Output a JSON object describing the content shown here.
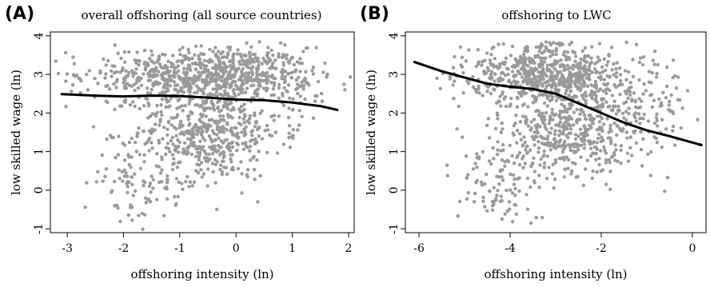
{
  "panels": [
    {
      "letter": "(A)",
      "title": "overall offshoring (all source countries)"
    },
    {
      "letter": "(B)",
      "title": "offshoring to LWC"
    }
  ],
  "chart_data": [
    {
      "type": "scatter",
      "panel": "(A)",
      "title": "overall offshoring (all source countries)",
      "xlabel": "offshoring intensity (ln)",
      "ylabel": "low skilled wage (ln)",
      "xlim": [
        -3.3,
        2.1
      ],
      "ylim": [
        -1.1,
        4.1
      ],
      "xticks": [
        -3,
        -2,
        -1,
        0,
        1,
        2
      ],
      "yticks": [
        -1,
        0,
        1,
        2,
        3,
        4
      ],
      "grid": false,
      "point_color": "#9a9a9a",
      "line_color": "#000000",
      "scatter_clusters": [
        {
          "cx": -0.3,
          "cy": 3.0,
          "sx": 0.8,
          "sy": 0.35,
          "n": 650
        },
        {
          "cx": -0.5,
          "cy": 1.5,
          "sx": 0.65,
          "sy": 0.6,
          "n": 500
        },
        {
          "cx": -1.8,
          "cy": 3.0,
          "sx": 0.6,
          "sy": 0.35,
          "n": 120
        },
        {
          "cx": -1.6,
          "cy": 0.2,
          "sx": 0.55,
          "sy": 0.55,
          "n": 110
        },
        {
          "cx": 1.0,
          "cy": 2.6,
          "sx": 0.35,
          "sy": 0.6,
          "n": 60
        }
      ],
      "fit_line": {
        "x": [
          -3.1,
          -2.5,
          -2.0,
          -1.5,
          -1.0,
          -0.5,
          0.0,
          0.5,
          1.0,
          1.5,
          1.8
        ],
        "y": [
          2.49,
          2.45,
          2.43,
          2.45,
          2.44,
          2.4,
          2.35,
          2.33,
          2.27,
          2.18,
          2.08
        ]
      }
    },
    {
      "type": "scatter",
      "panel": "(B)",
      "title": "offshoring to LWC",
      "xlabel": "offshoring intensity (ln)",
      "ylabel": "low skilled wage (ln)",
      "xlim": [
        -6.3,
        0.3
      ],
      "ylim": [
        -1.1,
        4.1
      ],
      "xticks": [
        -6,
        -4,
        -2,
        0
      ],
      "yticks": [
        -1,
        0,
        1,
        2,
        3,
        4
      ],
      "grid": false,
      "point_color": "#9a9a9a",
      "line_color": "#000000",
      "scatter_clusters": [
        {
          "cx": -3.2,
          "cy": 3.0,
          "sx": 0.9,
          "sy": 0.4,
          "n": 650
        },
        {
          "cx": -2.7,
          "cy": 1.5,
          "sx": 0.8,
          "sy": 0.6,
          "n": 450
        },
        {
          "cx": -4.2,
          "cy": 0.3,
          "sx": 0.4,
          "sy": 0.6,
          "n": 110
        },
        {
          "cx": -1.2,
          "cy": 2.2,
          "sx": 0.6,
          "sy": 0.7,
          "n": 120
        }
      ],
      "fit_line": {
        "x": [
          -6.1,
          -5.5,
          -5.0,
          -4.5,
          -4.0,
          -3.5,
          -3.0,
          -2.5,
          -2.0,
          -1.5,
          -1.0,
          -0.5,
          0.2
        ],
        "y": [
          3.32,
          3.08,
          2.92,
          2.76,
          2.68,
          2.62,
          2.5,
          2.25,
          2.0,
          1.75,
          1.55,
          1.4,
          1.17
        ]
      }
    }
  ]
}
